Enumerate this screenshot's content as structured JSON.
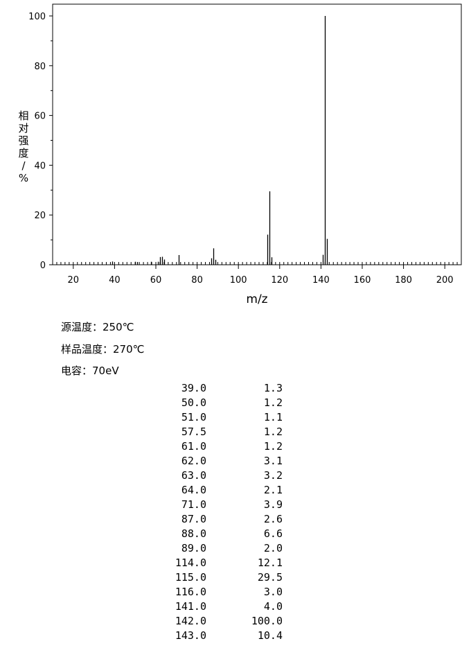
{
  "chart_data": {
    "type": "bar",
    "title": "",
    "xlabel": "m/z",
    "ylabel": "相对强度/%",
    "xlim": [
      10,
      208
    ],
    "ylim": [
      0,
      100
    ],
    "xticks": [
      20,
      40,
      60,
      80,
      100,
      120,
      140,
      160,
      180,
      200
    ],
    "yticks": [
      0,
      20,
      40,
      60,
      80,
      100
    ],
    "grid": false,
    "x": [
      39.0,
      50.0,
      51.0,
      57.5,
      61.0,
      62.0,
      63.0,
      64.0,
      71.0,
      87.0,
      88.0,
      89.0,
      114.0,
      115.0,
      116.0,
      141.0,
      142.0,
      143.0
    ],
    "values": [
      1.3,
      1.2,
      1.1,
      1.2,
      1.2,
      3.1,
      3.2,
      2.1,
      3.9,
      2.6,
      6.6,
      2.0,
      12.1,
      29.5,
      3.0,
      4.0,
      100.0,
      10.4
    ]
  },
  "conditions": [
    "源温度：250℃",
    "样品温度：270℃",
    "电容：70eV"
  ],
  "peak_table": [
    [
      "39.0",
      "1.3"
    ],
    [
      "50.0",
      "1.2"
    ],
    [
      "51.0",
      "1.1"
    ],
    [
      "57.5",
      "1.2"
    ],
    [
      "61.0",
      "1.2"
    ],
    [
      "62.0",
      "3.1"
    ],
    [
      "63.0",
      "3.2"
    ],
    [
      "64.0",
      "2.1"
    ],
    [
      "71.0",
      "3.9"
    ],
    [
      "87.0",
      "2.6"
    ],
    [
      "88.0",
      "6.6"
    ],
    [
      "89.0",
      "2.0"
    ],
    [
      "114.0",
      "12.1"
    ],
    [
      "115.0",
      "29.5"
    ],
    [
      "116.0",
      "3.0"
    ],
    [
      "141.0",
      "4.0"
    ],
    [
      "142.0",
      "100.0"
    ],
    [
      "143.0",
      "10.4"
    ]
  ]
}
